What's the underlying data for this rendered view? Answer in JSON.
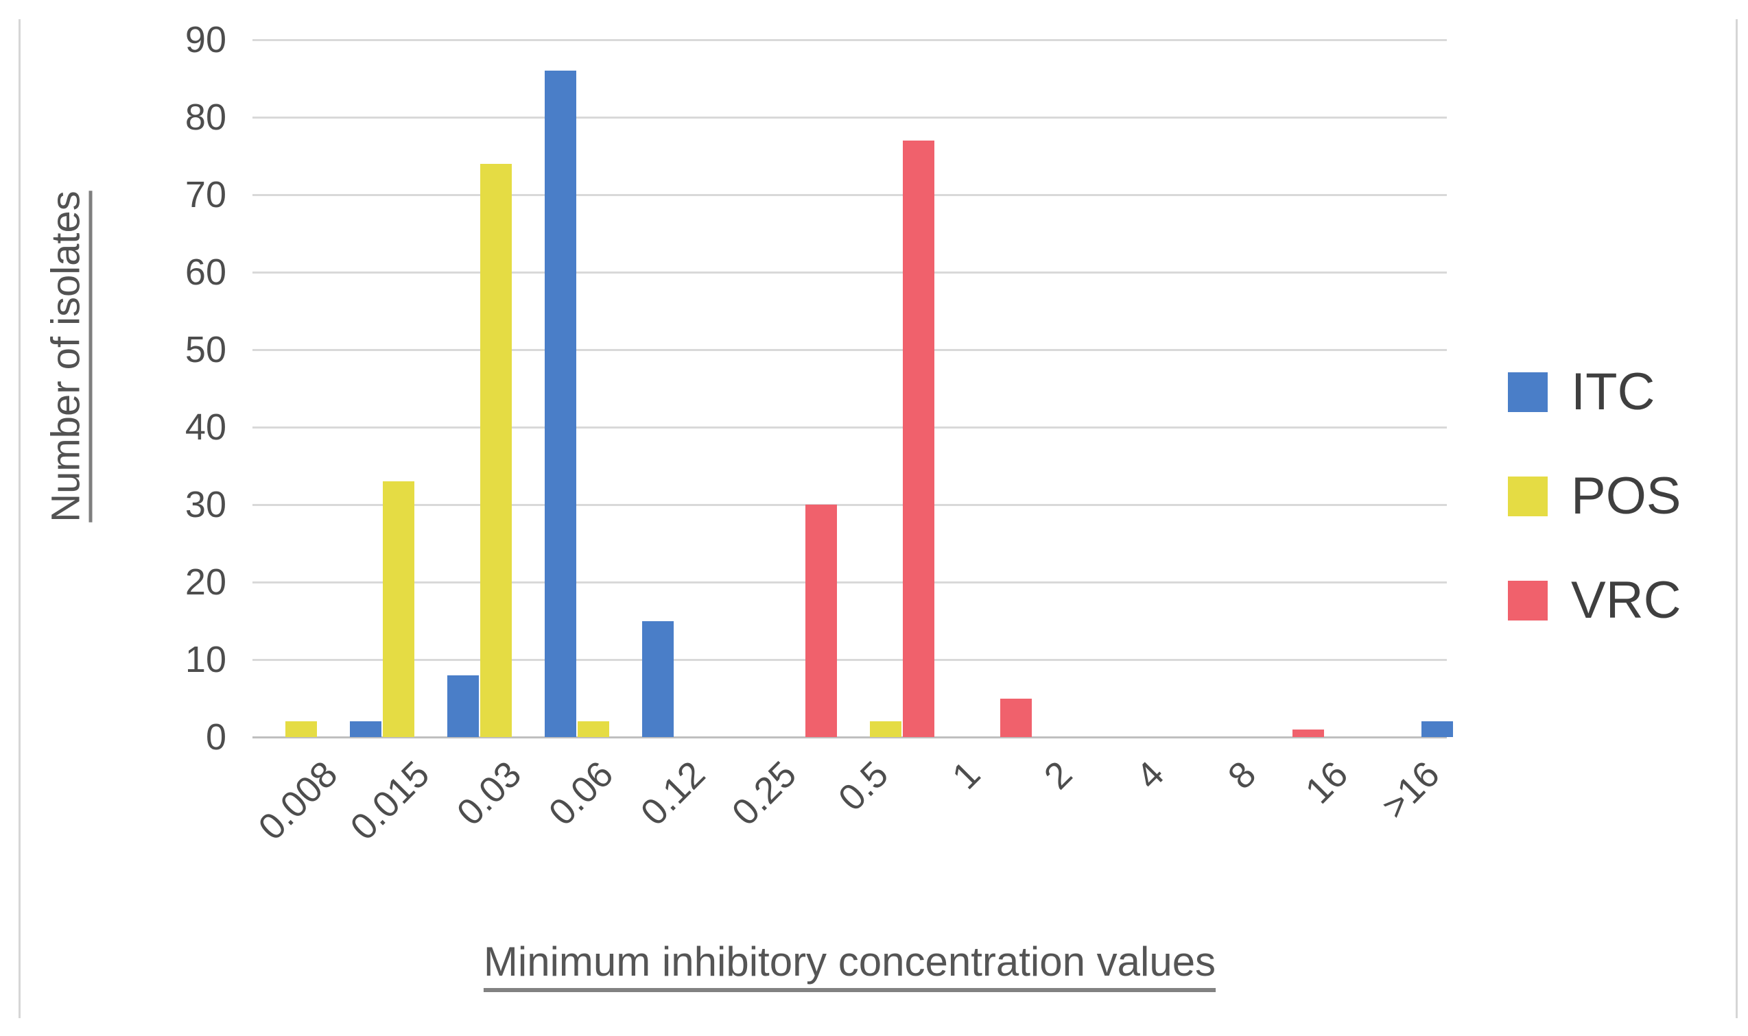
{
  "page": {
    "background": "#FFFFFF",
    "edge_border_color": "#D6D6D6"
  },
  "chart_data": {
    "type": "bar",
    "title": "",
    "categories": [
      "0.008",
      "0.015",
      "0.03",
      "0.06",
      "0.12",
      "0.25",
      "0.5",
      "1",
      "2",
      "4",
      "8",
      "16",
      ">16"
    ],
    "series": [
      {
        "name": "ITC",
        "color": "#4A7EC8",
        "values": [
          0,
          2,
          8,
          86,
          15,
          0,
          0,
          0,
          0,
          0,
          0,
          0,
          2
        ]
      },
      {
        "name": "POS",
        "color": "#E5DC44",
        "values": [
          2,
          33,
          74,
          2,
          0,
          0,
          2,
          0,
          0,
          0,
          0,
          0,
          0
        ]
      },
      {
        "name": "VRC",
        "color": "#F0616C",
        "values": [
          0,
          0,
          0,
          0,
          0,
          30,
          77,
          5,
          0,
          0,
          1,
          0,
          0
        ]
      }
    ],
    "xlabel": "Minimum inhibitory concentration values",
    "ylabel": "Number of isolates",
    "ylim": [
      0,
      90
    ],
    "yticks": [
      0,
      10,
      20,
      30,
      40,
      50,
      60,
      70,
      80,
      90
    ],
    "grid": true,
    "gridline_color": "#D9D9D9",
    "axis_line_color": "#BFBFBF",
    "tick_label_color": "#4D4D4D",
    "axis_title_color": "#555555",
    "legend_position": "right",
    "legend": [
      "ITC",
      "POS",
      "VRC"
    ]
  }
}
